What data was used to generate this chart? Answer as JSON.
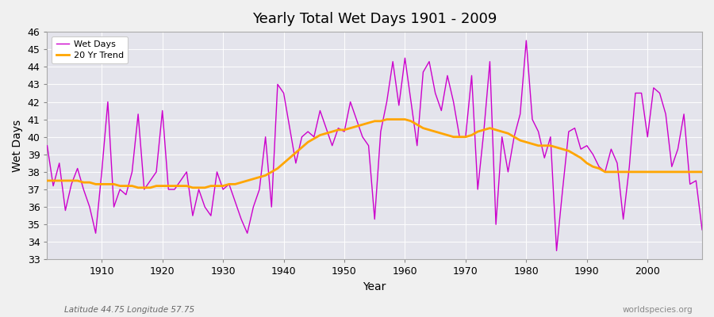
{
  "title": "Yearly Total Wet Days 1901 - 2009",
  "xlabel": "Year",
  "ylabel": "Wet Days",
  "subtitle_left": "Latitude 44.75 Longitude 57.75",
  "subtitle_right": "worldspecies.org",
  "wet_days_color": "#CC00CC",
  "trend_color": "#FFA500",
  "bg_color": "#F0F0F0",
  "plot_bg_color": "#E4E4EC",
  "ylim": [
    33,
    46
  ],
  "yticks": [
    33,
    34,
    35,
    36,
    37,
    38,
    39,
    40,
    41,
    42,
    43,
    44,
    45,
    46
  ],
  "years": [
    1901,
    1902,
    1903,
    1904,
    1905,
    1906,
    1907,
    1908,
    1909,
    1910,
    1911,
    1912,
    1913,
    1914,
    1915,
    1916,
    1917,
    1918,
    1919,
    1920,
    1921,
    1922,
    1923,
    1924,
    1925,
    1926,
    1927,
    1928,
    1929,
    1930,
    1931,
    1932,
    1933,
    1934,
    1935,
    1936,
    1937,
    1938,
    1939,
    1940,
    1941,
    1942,
    1943,
    1944,
    1945,
    1946,
    1947,
    1948,
    1949,
    1950,
    1951,
    1952,
    1953,
    1954,
    1955,
    1956,
    1957,
    1958,
    1959,
    1960,
    1961,
    1962,
    1963,
    1964,
    1965,
    1966,
    1967,
    1968,
    1969,
    1970,
    1971,
    1972,
    1973,
    1974,
    1975,
    1976,
    1977,
    1978,
    1979,
    1980,
    1981,
    1982,
    1983,
    1984,
    1985,
    1986,
    1987,
    1988,
    1989,
    1990,
    1991,
    1992,
    1993,
    1994,
    1995,
    1996,
    1997,
    1998,
    1999,
    2000,
    2001,
    2002,
    2003,
    2004,
    2005,
    2006,
    2007,
    2008,
    2009
  ],
  "wet_days": [
    39.5,
    37.2,
    38.5,
    35.8,
    37.3,
    38.2,
    37.0,
    36.0,
    34.5,
    38.0,
    42.0,
    36.0,
    37.0,
    36.7,
    38.0,
    41.3,
    37.0,
    37.5,
    38.0,
    41.5,
    37.0,
    37.0,
    37.5,
    38.0,
    35.5,
    37.0,
    36.0,
    35.5,
    38.0,
    37.0,
    37.3,
    36.3,
    35.3,
    34.5,
    36.0,
    37.0,
    40.0,
    36.0,
    43.0,
    42.5,
    40.5,
    38.5,
    40.0,
    40.3,
    40.0,
    41.5,
    40.5,
    39.5,
    40.5,
    40.3,
    42.0,
    41.0,
    40.0,
    39.5,
    35.3,
    40.3,
    42.0,
    44.3,
    41.8,
    44.5,
    42.0,
    39.5,
    43.7,
    44.3,
    42.5,
    41.5,
    43.5,
    42.0,
    40.0,
    40.0,
    43.5,
    37.0,
    40.3,
    44.3,
    35.0,
    40.0,
    38.0,
    40.0,
    41.3,
    45.5,
    41.0,
    40.3,
    38.8,
    40.0,
    33.5,
    37.0,
    40.3,
    40.5,
    39.3,
    39.5,
    39.0,
    38.3,
    38.0,
    39.3,
    38.5,
    35.3,
    38.3,
    42.5,
    42.5,
    40.0,
    42.8,
    42.5,
    41.3,
    38.3,
    39.3,
    41.3,
    37.3,
    37.5,
    34.7
  ],
  "trend_values": [
    37.5,
    37.5,
    37.5,
    37.5,
    37.5,
    37.5,
    37.4,
    37.4,
    37.3,
    37.3,
    37.3,
    37.3,
    37.2,
    37.2,
    37.2,
    37.1,
    37.1,
    37.1,
    37.2,
    37.2,
    37.2,
    37.2,
    37.2,
    37.2,
    37.1,
    37.1,
    37.1,
    37.2,
    37.2,
    37.2,
    37.3,
    37.3,
    37.4,
    37.5,
    37.6,
    37.7,
    37.8,
    38.0,
    38.2,
    38.5,
    38.8,
    39.1,
    39.4,
    39.7,
    39.9,
    40.1,
    40.2,
    40.3,
    40.4,
    40.4,
    40.5,
    40.6,
    40.7,
    40.8,
    40.9,
    40.9,
    41.0,
    41.0,
    41.0,
    41.0,
    40.9,
    40.7,
    40.5,
    40.4,
    40.3,
    40.2,
    40.1,
    40.0,
    40.0,
    40.0,
    40.1,
    40.3,
    40.4,
    40.5,
    40.4,
    40.3,
    40.2,
    40.0,
    39.8,
    39.7,
    39.6,
    39.5,
    39.5,
    39.5,
    39.4,
    39.3,
    39.2,
    39.0,
    38.8,
    38.5,
    38.3,
    38.2,
    38.0,
    38.0,
    38.0,
    38.0,
    38.0,
    38.0,
    38.0,
    38.0,
    38.0,
    38.0,
    38.0,
    38.0,
    38.0,
    38.0,
    38.0,
    38.0,
    38.0
  ]
}
